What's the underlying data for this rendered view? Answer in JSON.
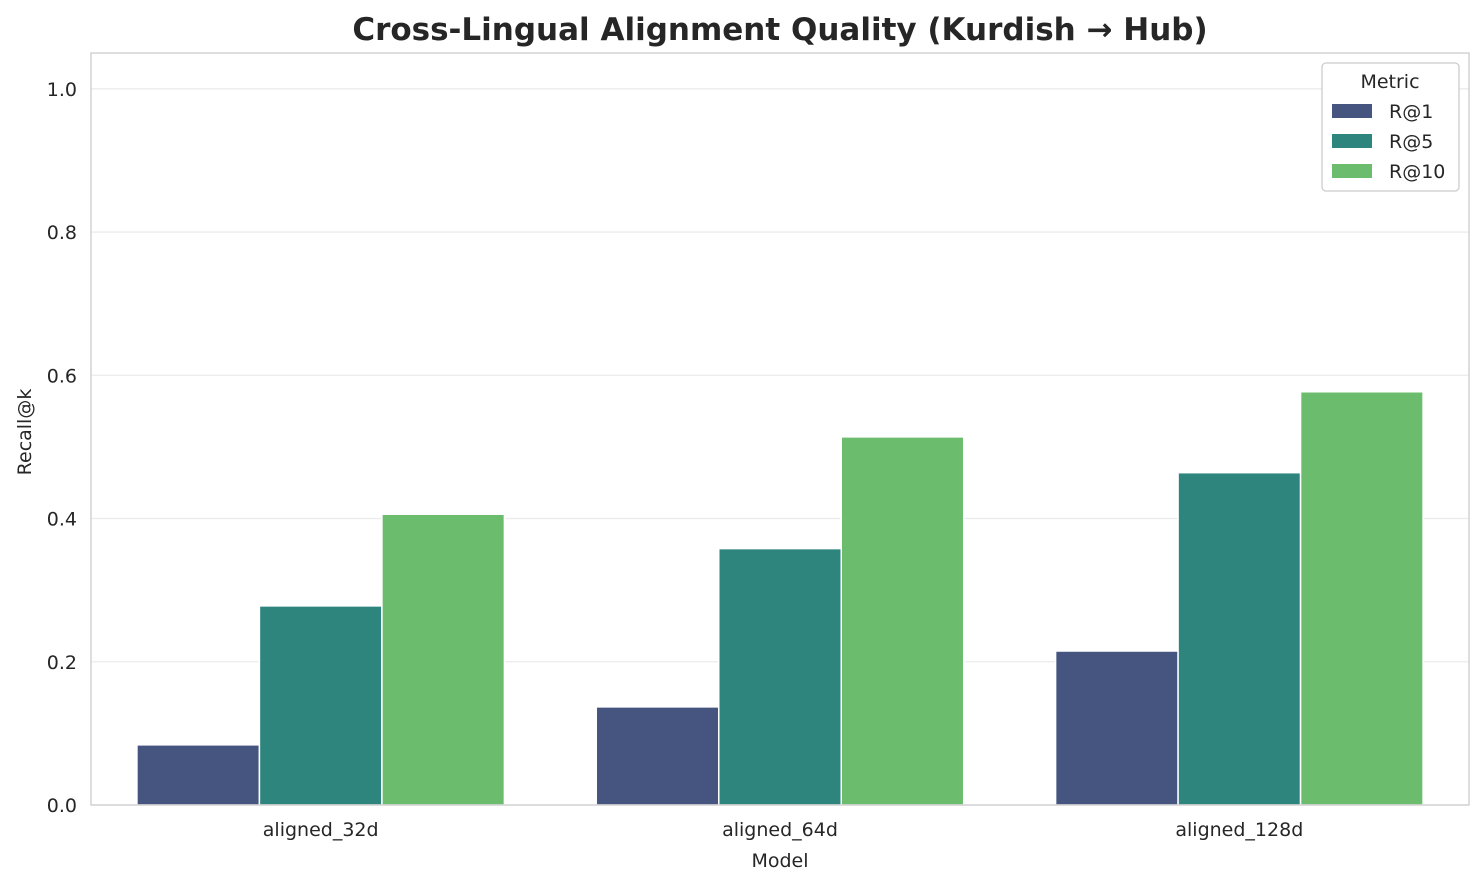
{
  "chart_data": {
    "type": "bar",
    "title": "Cross-Lingual Alignment Quality (Kurdish → Hub)",
    "xlabel": "Model",
    "ylabel": "Recall@k",
    "ylim": [
      0,
      1.05
    ],
    "yticks": [
      "0.0",
      "0.2",
      "0.4",
      "0.6",
      "0.8",
      "1.0"
    ],
    "grid": "horizontal",
    "categories": [
      "aligned_32d",
      "aligned_64d",
      "aligned_128d"
    ],
    "legend": {
      "title": "Metric",
      "placement": "top-right"
    },
    "series": [
      {
        "name": "R@1",
        "color": "#46557f",
        "values": [
          0.084,
          0.137,
          0.215
        ]
      },
      {
        "name": "R@5",
        "color": "#2e857e",
        "values": [
          0.278,
          0.358,
          0.464
        ]
      },
      {
        "name": "R@10",
        "color": "#6bbd6d",
        "values": [
          0.406,
          0.514,
          0.577
        ]
      }
    ]
  }
}
